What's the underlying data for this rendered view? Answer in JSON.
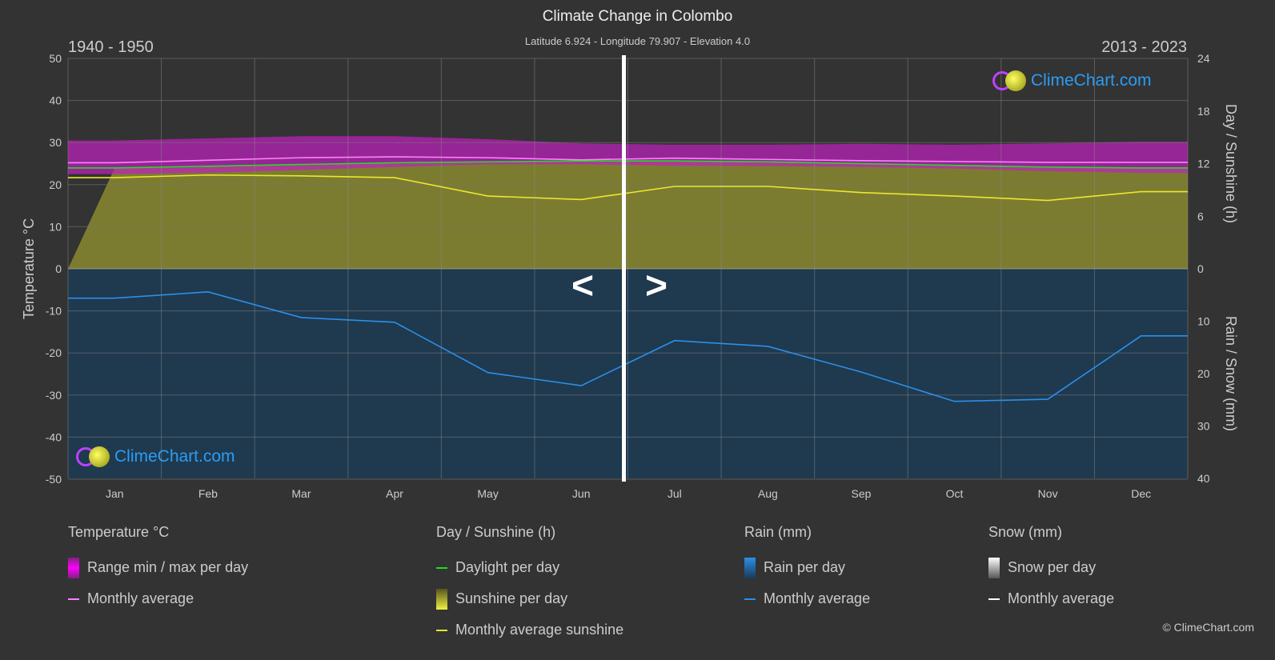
{
  "header": {
    "title": "Climate Change in Colombo",
    "subtitle": "Latitude 6.924 - Longitude 79.907 - Elevation 4.0",
    "period_left": "1940 - 1950",
    "period_right": "2013 - 2023",
    "nav_left": "<",
    "nav_right": ">"
  },
  "logo_text": "ClimeChart.com",
  "copyright": "© ClimeChart.com",
  "chart_data": {
    "type": "line",
    "title": "Climate Change in Colombo",
    "categories": [
      "Jan",
      "Feb",
      "Mar",
      "Apr",
      "May",
      "Jun",
      "Jul",
      "Aug",
      "Sep",
      "Oct",
      "Nov",
      "Dec"
    ],
    "y_left": {
      "label": "Temperature °C",
      "range": [
        -50,
        50
      ],
      "ticks": [
        50,
        40,
        30,
        20,
        10,
        0,
        -10,
        -20,
        -30,
        -40,
        -50
      ]
    },
    "y_right_top": {
      "label": "Day / Sunshine (h)",
      "range": [
        0,
        24
      ],
      "ticks": [
        24,
        18,
        12,
        6,
        0
      ]
    },
    "y_right_bottom": {
      "label": "Rain / Snow (mm)",
      "range": [
        0,
        40
      ],
      "ticks": [
        0,
        10,
        20,
        30,
        40
      ]
    },
    "grid": true,
    "series": [
      {
        "name": "Range min / max per day",
        "kind": "band",
        "axis": "temperature",
        "color": "#c020c0",
        "min": [
          22.5,
          22.8,
          23.5,
          24.2,
          24.8,
          24.8,
          24.5,
          24.4,
          24.2,
          23.8,
          23.2,
          22.8
        ],
        "max": [
          30.5,
          31.0,
          31.5,
          31.5,
          30.8,
          29.8,
          29.5,
          29.5,
          29.7,
          29.5,
          29.8,
          30.2
        ]
      },
      {
        "name": "Monthly average",
        "kind": "line",
        "axis": "temperature",
        "color": "#ff80ff",
        "values": [
          25.2,
          25.8,
          26.4,
          26.6,
          26.4,
          25.9,
          26.3,
          26.0,
          25.7,
          25.5,
          25.3,
          25.3
        ]
      },
      {
        "name": "Daylight per day",
        "kind": "line",
        "axis": "sunshine",
        "color": "#22dd22",
        "values": [
          11.5,
          11.7,
          11.9,
          12.1,
          12.2,
          12.3,
          12.3,
          12.2,
          12.0,
          11.8,
          11.6,
          11.5
        ]
      },
      {
        "name": "Sunshine per day",
        "kind": "area",
        "axis": "sunshine",
        "color": "#9a9a30"
      },
      {
        "name": "Monthly average sunshine",
        "kind": "line",
        "axis": "sunshine",
        "color": "#e8e830",
        "values": [
          10.4,
          10.7,
          10.6,
          10.4,
          8.3,
          7.9,
          9.4,
          9.4,
          8.7,
          8.3,
          7.8,
          8.8
        ]
      },
      {
        "name": "Rain per day",
        "kind": "area",
        "axis": "rain",
        "color": "#1a5a8a"
      },
      {
        "name": "Monthly average",
        "kind": "line",
        "axis": "rain",
        "color": "#2a90e8",
        "values": [
          5.6,
          4.4,
          9.3,
          10.2,
          19.8,
          22.3,
          13.7,
          14.8,
          19.7,
          25.3,
          24.9,
          12.8
        ]
      },
      {
        "name": "Snow per day",
        "kind": "area",
        "axis": "snow",
        "color": "#cccccc"
      },
      {
        "name": "Monthly average",
        "kind": "line",
        "axis": "snow",
        "color": "#ffffff"
      }
    ]
  },
  "legend": {
    "temperature": {
      "title": "Temperature °C",
      "items": [
        "Range min / max per day",
        "Monthly average"
      ]
    },
    "sunshine": {
      "title": "Day / Sunshine (h)",
      "items": [
        "Daylight per day",
        "Sunshine per day",
        "Monthly average sunshine"
      ]
    },
    "rain": {
      "title": "Rain (mm)",
      "items": [
        "Rain per day",
        "Monthly average"
      ]
    },
    "snow": {
      "title": "Snow (mm)",
      "items": [
        "Snow per day",
        "Monthly average"
      ]
    }
  }
}
